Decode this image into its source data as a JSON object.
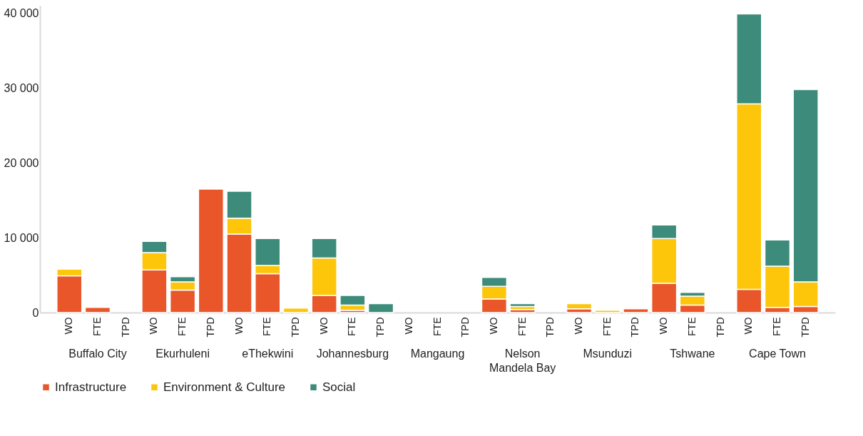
{
  "chart_data": {
    "type": "bar",
    "stacked": true,
    "categories": [
      "WO",
      "FTE",
      "TPD",
      "WO",
      "FTE",
      "TPD",
      "WO",
      "FTE",
      "TPD",
      "WO",
      "FTE",
      "TPD",
      "WO",
      "FTE",
      "TPD",
      "WO",
      "FTE",
      "TPD",
      "WO",
      "FTE",
      "TPD",
      "WO",
      "FTE",
      "TPD",
      "WO",
      "FTE",
      "TPD"
    ],
    "annotations": [
      "Buffalo City",
      "Ekurhuleni",
      "eThekwini",
      "Johannesburg",
      "Mangaung",
      "Nelson Mandela Bay",
      "Msunduzi",
      "Tshwane",
      "Cape Town"
    ],
    "series": [
      {
        "name": "Infrastructure",
        "color": "#e8562a",
        "values": [
          4900,
          700,
          null,
          5700,
          3000,
          16500,
          10500,
          5200,
          null,
          2300,
          300,
          null,
          null,
          null,
          null,
          1800,
          400,
          null,
          500,
          null,
          500,
          3900,
          1000,
          null,
          3100,
          700,
          800
        ]
      },
      {
        "name": "Environment & Culture",
        "color": "#fdc60b",
        "values": [
          900,
          null,
          null,
          2300,
          1100,
          null,
          2100,
          1100,
          600,
          5000,
          700,
          null,
          null,
          null,
          null,
          1700,
          400,
          null,
          700,
          300,
          null,
          6000,
          1200,
          null,
          24800,
          5500,
          3300
        ]
      },
      {
        "name": "Social",
        "color": "#3d8b7a",
        "values": [
          null,
          null,
          null,
          1500,
          700,
          null,
          3600,
          3600,
          null,
          2600,
          1300,
          1200,
          null,
          null,
          null,
          1200,
          400,
          null,
          null,
          null,
          null,
          1800,
          500,
          null,
          12000,
          3500,
          25700
        ]
      }
    ],
    "ylim": [
      0,
      41000
    ],
    "yticks": [
      {
        "value": 0,
        "label": "0"
      },
      {
        "value": 10000,
        "label": "10 000"
      },
      {
        "value": 20000,
        "label": "20 000"
      },
      {
        "value": 30000,
        "label": "30 000"
      },
      {
        "value": 40000,
        "label": "40 000"
      }
    ],
    "grid": false,
    "legend": "bottom"
  }
}
